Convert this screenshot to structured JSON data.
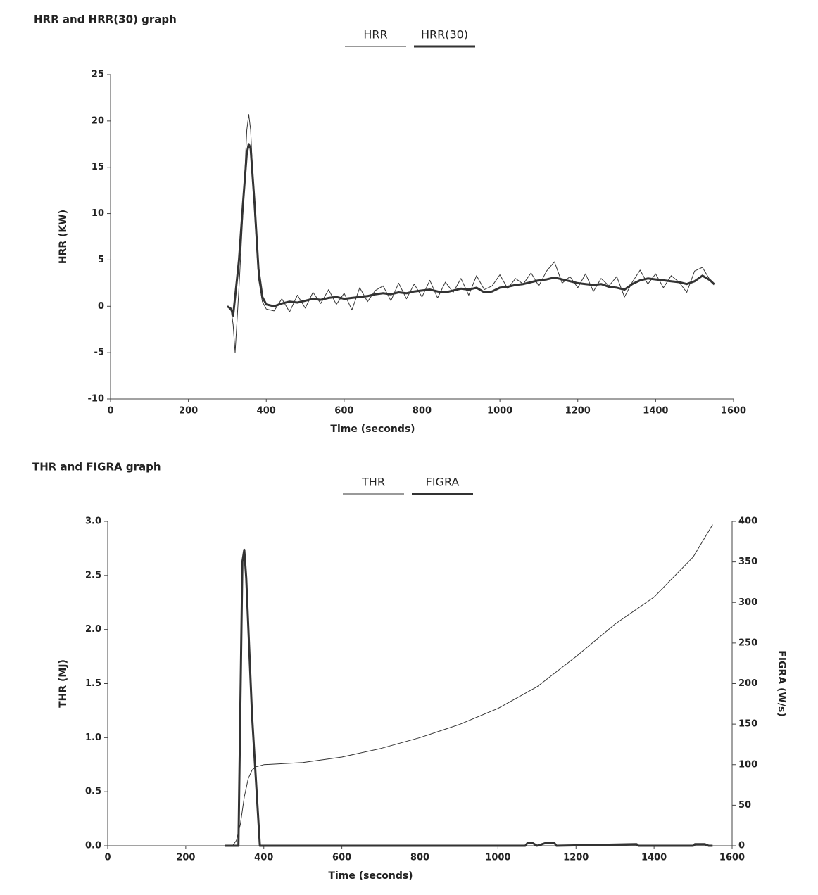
{
  "chart_data": [
    {
      "type": "line",
      "title": "HRR and HRR(30) graph",
      "xlabel": "Time (seconds)",
      "ylabel": "HRR (KW)",
      "xlim": [
        0,
        1600
      ],
      "xticks": [
        0,
        200,
        400,
        600,
        800,
        1000,
        1200,
        1400,
        1600
      ],
      "ylim": [
        -10,
        25
      ],
      "yticks": [
        -10,
        -5,
        0,
        5,
        10,
        15,
        20,
        25
      ],
      "grid": false,
      "legend": "top",
      "x": [
        300,
        310,
        315,
        320,
        330,
        340,
        350,
        355,
        360,
        370,
        380,
        390,
        400,
        420,
        440,
        460,
        480,
        500,
        520,
        540,
        560,
        580,
        600,
        620,
        640,
        660,
        680,
        700,
        720,
        740,
        760,
        780,
        800,
        820,
        840,
        860,
        880,
        900,
        920,
        940,
        960,
        980,
        1000,
        1020,
        1040,
        1060,
        1080,
        1100,
        1120,
        1140,
        1160,
        1180,
        1200,
        1220,
        1240,
        1260,
        1280,
        1300,
        1320,
        1340,
        1360,
        1380,
        1400,
        1420,
        1440,
        1460,
        1480,
        1500,
        1520,
        1540,
        1550
      ],
      "series": [
        {
          "name": "HRR",
          "color": "#333333",
          "width": 1,
          "values": [
            0,
            -0.5,
            -2,
            -5,
            2,
            10,
            19,
            20.7,
            19,
            10,
            3,
            0.5,
            -0.3,
            -0.5,
            0.8,
            -0.6,
            1.2,
            -0.2,
            1.5,
            0.3,
            1.8,
            0.2,
            1.4,
            -0.4,
            2.0,
            0.5,
            1.7,
            2.2,
            0.6,
            2.5,
            0.8,
            2.4,
            1.0,
            2.8,
            0.9,
            2.6,
            1.5,
            3.0,
            1.2,
            3.3,
            1.8,
            2.2,
            3.4,
            1.9,
            3.0,
            2.4,
            3.6,
            2.2,
            3.8,
            4.8,
            2.5,
            3.2,
            2.0,
            3.5,
            1.6,
            3.0,
            2.2,
            3.2,
            1.0,
            2.6,
            3.9,
            2.4,
            3.5,
            2.0,
            3.3,
            2.6,
            1.5,
            3.8,
            4.2,
            2.8,
            2.3
          ]
        },
        {
          "name": "HRR(30)",
          "color": "#333333",
          "width": 3,
          "values": [
            0,
            -0.3,
            -1,
            1,
            5,
            11,
            16.5,
            17.5,
            17,
            11,
            4,
            1,
            0.2,
            0,
            0.3,
            0.5,
            0.4,
            0.6,
            0.8,
            0.7,
            0.9,
            1.0,
            0.8,
            0.9,
            1.0,
            1.1,
            1.3,
            1.4,
            1.3,
            1.5,
            1.4,
            1.6,
            1.7,
            1.8,
            1.6,
            1.5,
            1.7,
            1.9,
            1.8,
            2.0,
            1.5,
            1.6,
            2.0,
            2.1,
            2.3,
            2.4,
            2.6,
            2.8,
            2.9,
            3.1,
            2.9,
            2.7,
            2.5,
            2.4,
            2.3,
            2.4,
            2.1,
            2.0,
            1.8,
            2.4,
            2.8,
            3.0,
            2.9,
            2.8,
            2.7,
            2.6,
            2.4,
            2.7,
            3.3,
            2.8,
            2.4
          ]
        }
      ]
    },
    {
      "type": "line",
      "title": "THR and FIGRA graph",
      "xlabel": "Time (seconds)",
      "ylabel": "THR (MJ)",
      "y2label": "FIGRA (W/s)",
      "xlim": [
        0,
        1600
      ],
      "xticks": [
        0,
        200,
        400,
        600,
        800,
        1000,
        1200,
        1400,
        1600
      ],
      "ylim": [
        0,
        3
      ],
      "yticks": [
        {
          "value": 0,
          "label": "0.0"
        },
        0.5,
        {
          "value": 1,
          "label": "1.0"
        },
        1.5,
        {
          "value": 2,
          "label": "2.0"
        },
        2.5,
        {
          "value": 3,
          "label": "3.0"
        }
      ],
      "y2lim": [
        0,
        400
      ],
      "y2ticks": [
        0,
        50,
        100,
        150,
        200,
        250,
        300,
        350,
        400
      ],
      "grid": false,
      "legend": "top",
      "series": [
        {
          "name": "THR",
          "color": "#333333",
          "width": 1,
          "x": [
            300,
            320,
            330,
            340,
            350,
            360,
            370,
            380,
            390,
            400,
            500,
            600,
            700,
            800,
            900,
            1000,
            1100,
            1200,
            1300,
            1400,
            1500,
            1550
          ],
          "values": [
            0,
            0,
            0.05,
            0.2,
            0.45,
            0.62,
            0.7,
            0.73,
            0.74,
            0.75,
            0.77,
            0.82,
            0.9,
            1.0,
            1.12,
            1.27,
            1.47,
            1.75,
            2.05,
            2.3,
            2.67,
            2.97
          ]
        },
        {
          "name": "FIGRA",
          "color": "#333333",
          "width": 3,
          "axis": "y2",
          "x": [
            300,
            335,
            345,
            350,
            355,
            370,
            385,
            390,
            400,
            1070,
            1075,
            1090,
            1100,
            1120,
            1145,
            1150,
            1355,
            1360,
            1500,
            1505,
            1530,
            1540,
            1550
          ],
          "values": [
            0,
            0,
            350,
            365,
            330,
            160,
            40,
            0,
            0,
            0,
            3,
            3,
            0,
            3,
            3,
            0,
            2,
            0,
            0,
            2,
            2,
            0,
            0
          ]
        }
      ]
    }
  ]
}
